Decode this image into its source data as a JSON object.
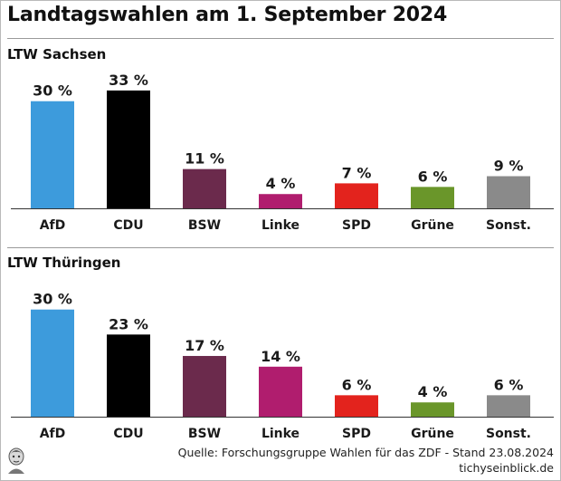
{
  "title": "Landtagswahlen am 1. September 2024",
  "colors": {
    "AfD": "#3d9bdc",
    "CDU": "#000000",
    "BSW": "#6b2a4c",
    "Linke": "#b01d6e",
    "SPD": "#e3231d",
    "Grüne": "#6a962a",
    "Sonst.": "#8a8a8a"
  },
  "chart_data": [
    {
      "type": "bar",
      "title": "LTW Sachsen",
      "categories": [
        "AfD",
        "CDU",
        "BSW",
        "Linke",
        "SPD",
        "Grüne",
        "Sonst."
      ],
      "values": [
        30,
        33,
        11,
        4,
        7,
        6,
        9
      ],
      "value_labels": [
        "30 %",
        "33 %",
        "11 %",
        "4 %",
        "7 %",
        "6 %",
        "9 %"
      ],
      "ylim": [
        0,
        35
      ],
      "grid": false
    },
    {
      "type": "bar",
      "title": "LTW Thüringen",
      "categories": [
        "AfD",
        "CDU",
        "BSW",
        "Linke",
        "SPD",
        "Grüne",
        "Sonst."
      ],
      "values": [
        30,
        23,
        17,
        14,
        6,
        4,
        6
      ],
      "value_labels": [
        "30 %",
        "23 %",
        "17 %",
        "14 %",
        "6 %",
        "4 %",
        "6 %"
      ],
      "ylim": [
        0,
        35
      ],
      "grid": false
    }
  ],
  "footer": {
    "source": "Quelle: Forschungsgruppe Wahlen für das ZDF - Stand 23.08.2024",
    "site": "tichyseinblick.de",
    "logo_icon": "portrait-logo-icon"
  }
}
